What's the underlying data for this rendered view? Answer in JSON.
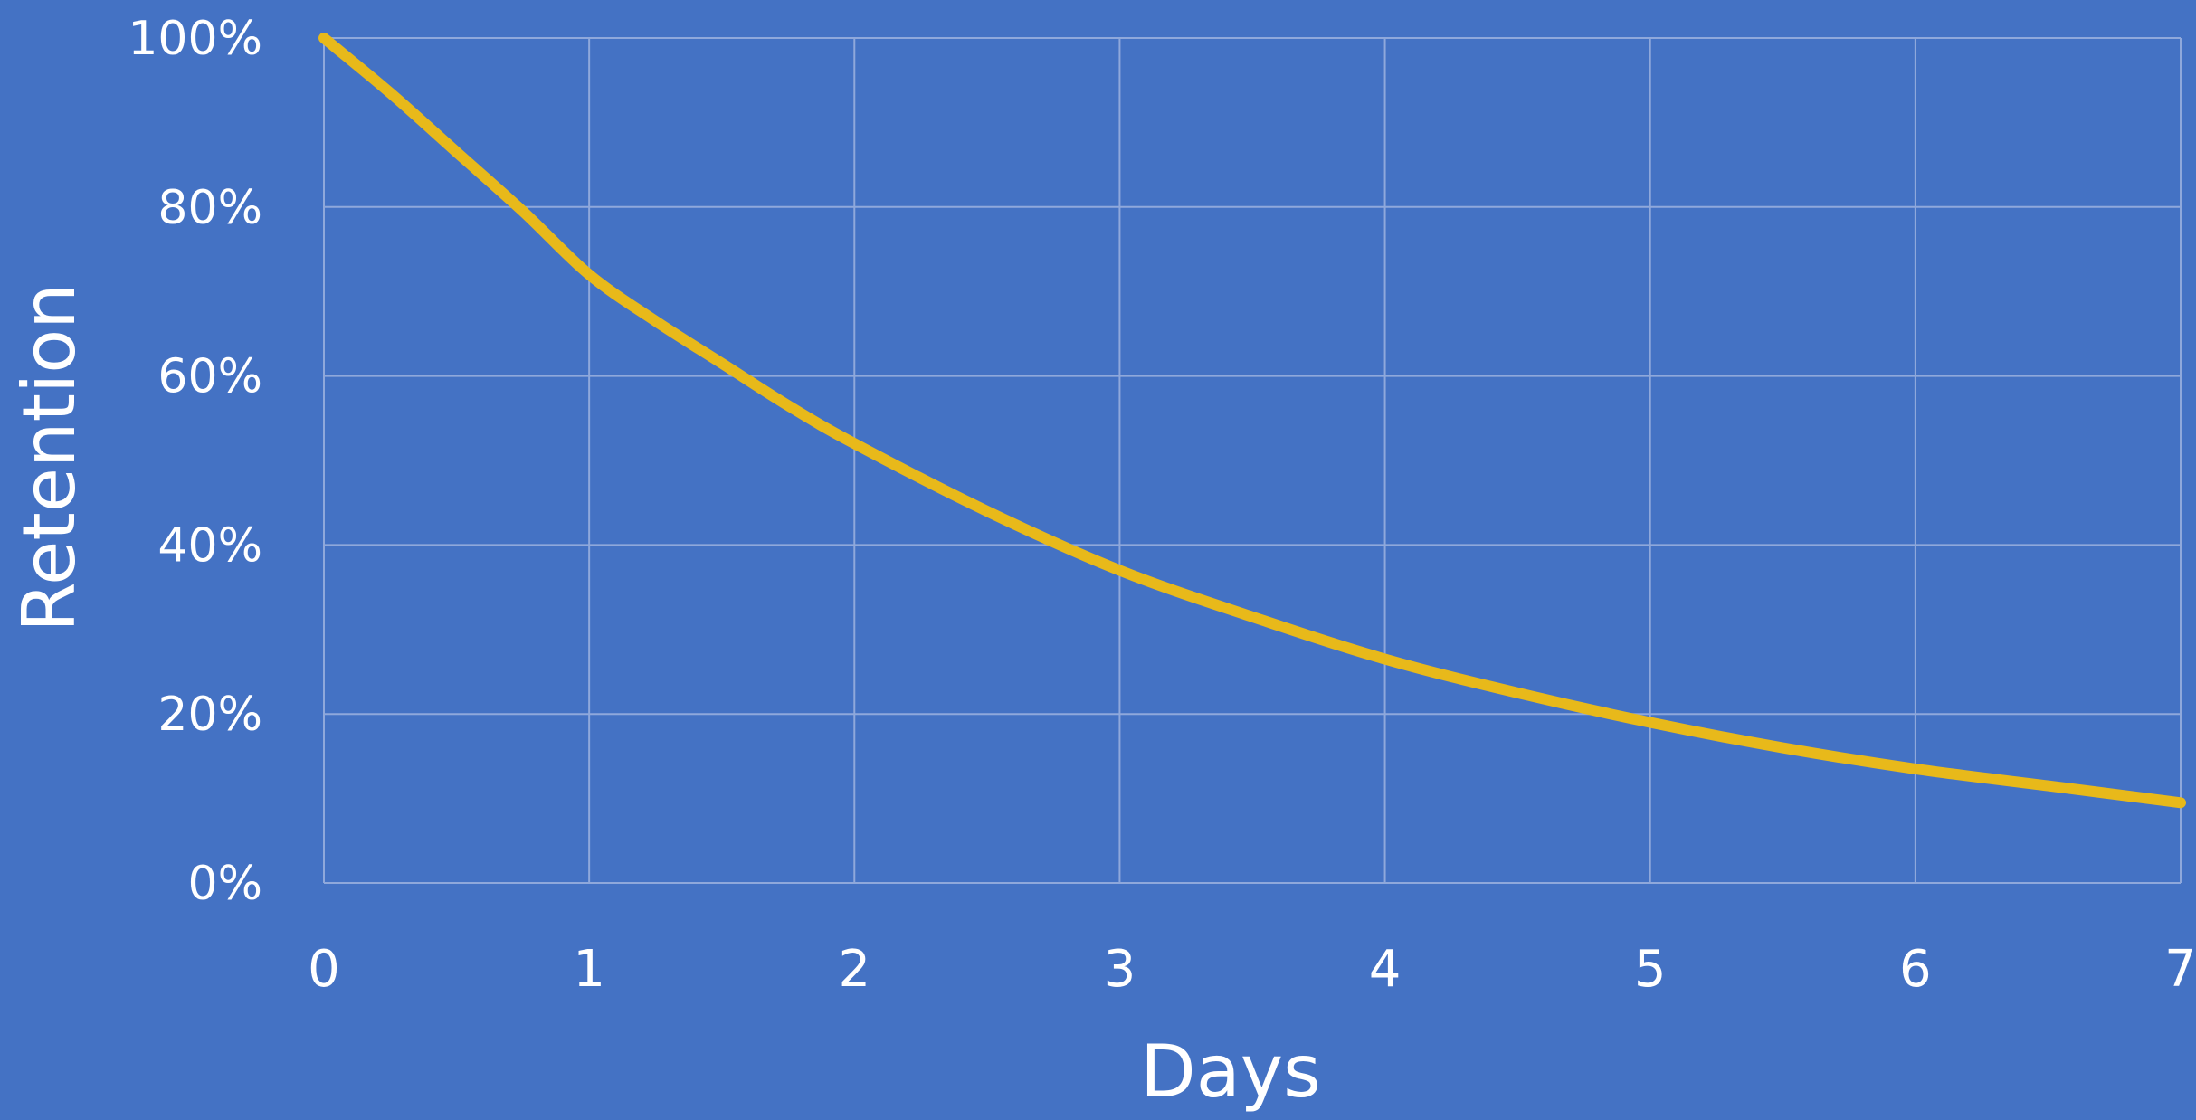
{
  "colors": {
    "background": "#4472c4",
    "grid": "#8fa8db",
    "text": "#ffffff",
    "curve": "#e8b91a"
  },
  "chart_data": {
    "type": "line",
    "xlabel": "Days",
    "ylabel": "Retention",
    "xlim": [
      0,
      7
    ],
    "ylim": [
      0,
      1
    ],
    "x_ticks": [
      0,
      1,
      2,
      3,
      4,
      5,
      6,
      7
    ],
    "x_tick_labels": [
      "0",
      "1",
      "2",
      "3",
      "4",
      "5",
      "6",
      "7"
    ],
    "y_ticks": [
      0,
      0.2,
      0.4,
      0.6,
      0.8,
      1.0
    ],
    "y_tick_labels": [
      "0%",
      "20%",
      "40%",
      "60%",
      "80%",
      "100%"
    ],
    "grid": true,
    "legend": "none",
    "series": [
      {
        "x": [
          0,
          0.25,
          0.5,
          0.75,
          1,
          1.25,
          1.5,
          1.75,
          2,
          2.5,
          3,
          3.5,
          4,
          4.5,
          5,
          5.5,
          6,
          6.5,
          7
        ],
        "y": [
          1.0,
          0.935,
          0.865,
          0.795,
          0.72,
          0.665,
          0.615,
          0.565,
          0.52,
          0.44,
          0.37,
          0.315,
          0.265,
          0.225,
          0.19,
          0.16,
          0.135,
          0.115,
          0.095
        ]
      }
    ]
  }
}
